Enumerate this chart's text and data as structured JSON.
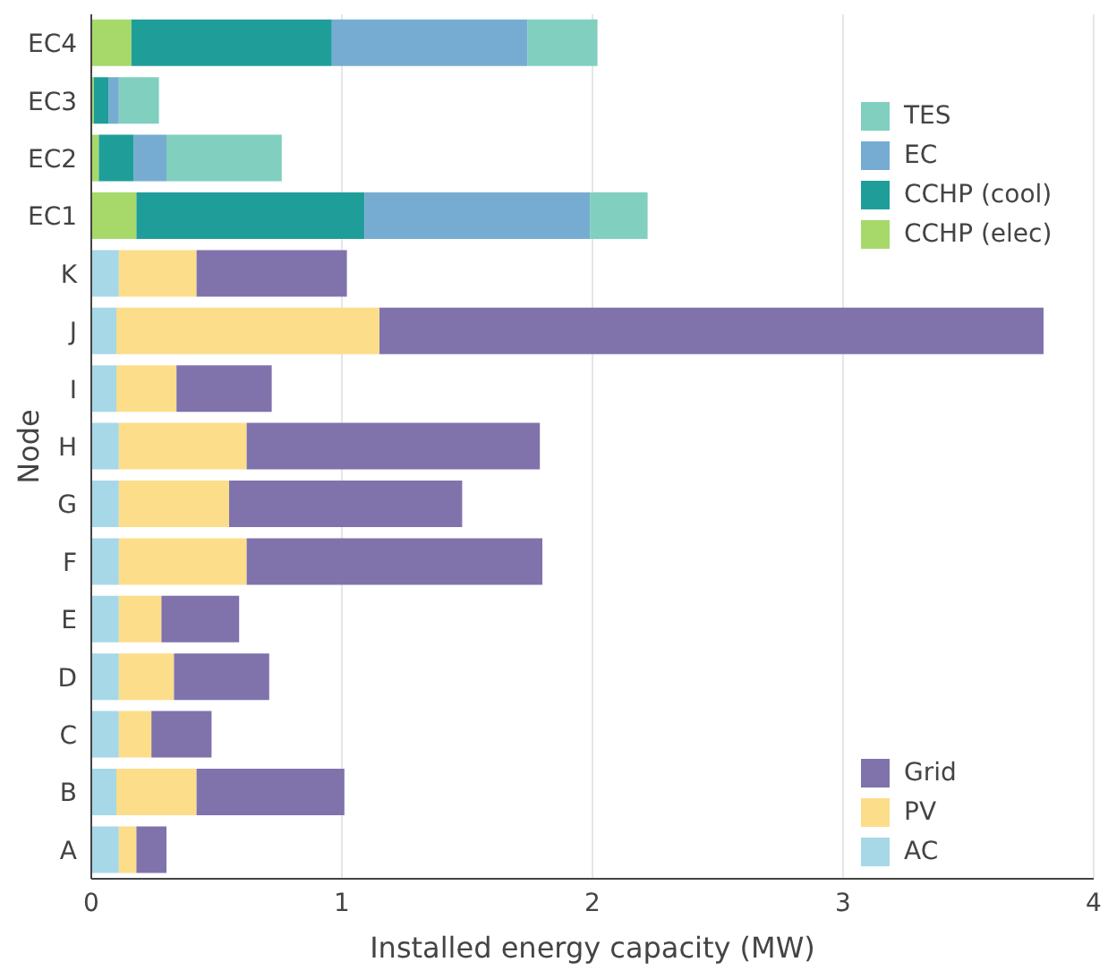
{
  "chart_data": {
    "type": "bar",
    "orientation": "horizontal",
    "stacked": true,
    "xlabel": "Installed energy capacity (MW)",
    "ylabel": "Node",
    "categories": [
      "EC4",
      "EC3",
      "EC2",
      "EC1",
      "K",
      "J",
      "I",
      "H",
      "G",
      "F",
      "E",
      "D",
      "C",
      "B",
      "A"
    ],
    "series": [
      {
        "name": "AC",
        "color": "#a6d8e8",
        "values": [
          null,
          null,
          null,
          null,
          0.11,
          0.1,
          0.1,
          0.11,
          0.11,
          0.11,
          0.11,
          0.11,
          0.11,
          0.1,
          0.11
        ]
      },
      {
        "name": "PV",
        "color": "#fcdd8a",
        "values": [
          null,
          null,
          null,
          null,
          0.31,
          1.05,
          0.24,
          0.51,
          0.44,
          0.51,
          0.17,
          0.22,
          0.13,
          0.32,
          0.07
        ]
      },
      {
        "name": "Grid",
        "color": "#8073ac",
        "values": [
          null,
          null,
          null,
          null,
          0.6,
          2.65,
          0.38,
          1.17,
          0.93,
          1.18,
          0.31,
          0.38,
          0.24,
          0.59,
          0.12
        ]
      },
      {
        "name": "CCHP (elec)",
        "color": "#a6d96a",
        "values": [
          0.16,
          0.01,
          0.03,
          0.18,
          null,
          null,
          null,
          null,
          null,
          null,
          null,
          null,
          null,
          null,
          null
        ]
      },
      {
        "name": "CCHP (cool)",
        "color": "#1f9e99",
        "values": [
          0.8,
          0.06,
          0.14,
          0.91,
          null,
          null,
          null,
          null,
          null,
          null,
          null,
          null,
          null,
          null,
          null
        ]
      },
      {
        "name": "EC",
        "color": "#76acd2",
        "values": [
          0.78,
          0.04,
          0.13,
          0.9,
          null,
          null,
          null,
          null,
          null,
          null,
          null,
          null,
          null,
          null,
          null
        ]
      },
      {
        "name": "TES",
        "color": "#80cfbf",
        "values": [
          0.28,
          0.16,
          0.46,
          0.23,
          null,
          null,
          null,
          null,
          null,
          null,
          null,
          null,
          null,
          null,
          null
        ]
      }
    ],
    "xlim": [
      0,
      4
    ],
    "xticks": [
      0,
      1,
      2,
      3,
      4
    ],
    "grid": "x",
    "legend": "right"
  }
}
